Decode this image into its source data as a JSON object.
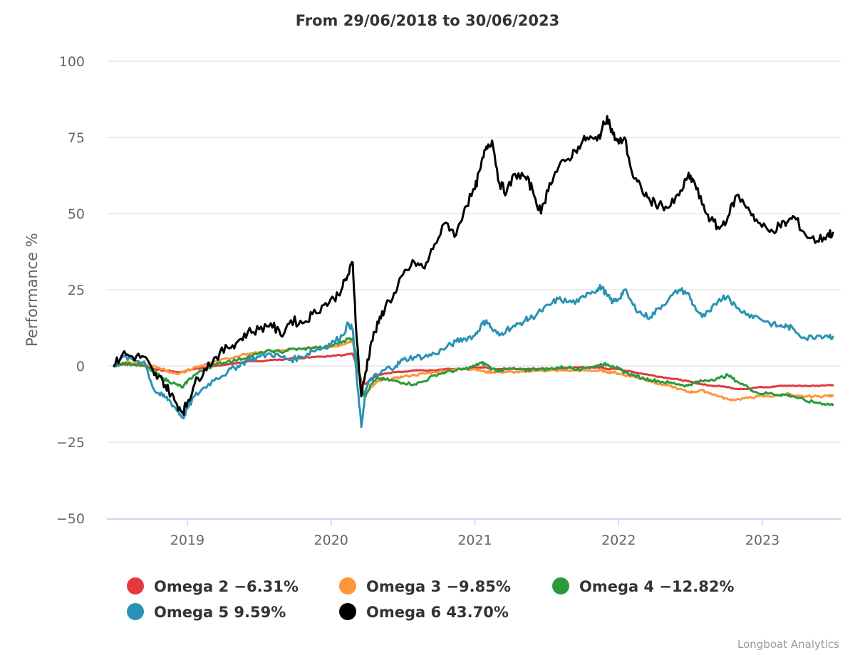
{
  "chart_data": {
    "type": "line",
    "title": "From 29/06/2018 to 30/06/2023",
    "xlabel": "",
    "ylabel": "Performance %",
    "x_range": [
      "2018-06-29",
      "2023-06-30"
    ],
    "ylim": [
      -50,
      100
    ],
    "yticks": [
      100,
      75,
      50,
      25,
      0,
      -25,
      -50
    ],
    "ytick_labels": [
      "100",
      "75",
      "50",
      "25",
      "0",
      "−25",
      "−50"
    ],
    "xticks": [
      "2019-01-01",
      "2020-01-01",
      "2021-01-01",
      "2022-01-01",
      "2023-01-01"
    ],
    "xtick_labels": [
      "2019",
      "2020",
      "2021",
      "2022",
      "2023"
    ],
    "grid": true,
    "legend_placement": "bottom",
    "credits": "Longboat Analytics",
    "x": [
      2018.49,
      2018.55,
      2018.62,
      2018.7,
      2018.77,
      2018.83,
      2018.87,
      2018.92,
      2018.97,
      2019.0,
      2019.05,
      2019.12,
      2019.2,
      2019.28,
      2019.35,
      2019.42,
      2019.5,
      2019.58,
      2019.65,
      2019.72,
      2019.8,
      2019.87,
      2019.95,
      2020.02,
      2020.08,
      2020.12,
      2020.15,
      2020.18,
      2020.21,
      2020.24,
      2020.28,
      2020.33,
      2020.38,
      2020.45,
      2020.5,
      2020.58,
      2020.65,
      2020.72,
      2020.8,
      2020.87,
      2020.93,
      2021.0,
      2021.04,
      2021.08,
      2021.12,
      2021.17,
      2021.22,
      2021.28,
      2021.35,
      2021.4,
      2021.46,
      2021.52,
      2021.58,
      2021.65,
      2021.72,
      2021.78,
      2021.85,
      2021.88,
      2021.92,
      2021.96,
      2022.0,
      2022.04,
      2022.1,
      2022.16,
      2022.22,
      2022.28,
      2022.35,
      2022.42,
      2022.48,
      2022.52,
      2022.58,
      2022.64,
      2022.7,
      2022.76,
      2022.82,
      2022.9,
      2022.97,
      2023.05,
      2023.12,
      2023.17,
      2023.22,
      2023.3,
      2023.38,
      2023.45,
      2023.49
    ],
    "series": [
      {
        "name": "Omega 2",
        "legend_label": "Omega 2 −6.31%",
        "final_return": "-6.31%",
        "color": "#e2383e",
        "values": [
          0,
          0.5,
          0.5,
          0,
          -1,
          -1.5,
          -1.5,
          -2,
          -2,
          -1.5,
          -1,
          -0.5,
          0,
          0.5,
          1,
          1.5,
          1.5,
          2,
          2,
          2.5,
          2.5,
          3,
          3,
          3.5,
          3.5,
          4,
          4,
          0,
          -5,
          -6,
          -4,
          -3,
          -2.5,
          -2,
          -2,
          -1.5,
          -1.5,
          -1.5,
          -1,
          -1,
          -1,
          -0.5,
          -0.5,
          -0.5,
          -1,
          -1,
          -1,
          -1,
          -1,
          -1,
          -1,
          -1,
          -1,
          -0.5,
          -0.5,
          -0.5,
          -0.5,
          -0.5,
          -1,
          -1,
          -1,
          -1.5,
          -2,
          -2.5,
          -3,
          -3.5,
          -4,
          -4.5,
          -5,
          -5.5,
          -6,
          -6.5,
          -6.5,
          -7,
          -7.5,
          -7.5,
          -7,
          -7,
          -6.5,
          -6.5,
          -6.5,
          -6.5,
          -6.5,
          -6.3,
          -6.31
        ]
      },
      {
        "name": "Omega 3",
        "legend_label": "Omega 3 −9.85%",
        "final_return": "-9.85%",
        "color": "#fd9639",
        "values": [
          0,
          1,
          1,
          0.5,
          0,
          -1,
          -2,
          -2.5,
          -2,
          -1.5,
          -0.5,
          0.5,
          1.5,
          2.5,
          3,
          4,
          4.5,
          5,
          5,
          5.5,
          5.5,
          6,
          6,
          6.5,
          7,
          8,
          8,
          2,
          -7,
          -9,
          -7,
          -5,
          -4.5,
          -4,
          -3.5,
          -3,
          -2.5,
          -2,
          -1.5,
          -1,
          -1,
          -1,
          -1.5,
          -2,
          -2,
          -2,
          -2,
          -2,
          -2,
          -1.5,
          -1.5,
          -1.5,
          -1.5,
          -1.5,
          -1.5,
          -1.5,
          -1.5,
          -1.5,
          -2,
          -2,
          -2.5,
          -3,
          -3.5,
          -4,
          -5,
          -6,
          -6.5,
          -7.5,
          -8.5,
          -8.5,
          -8,
          -9,
          -10,
          -11,
          -11,
          -10.5,
          -10,
          -10,
          -9.5,
          -9,
          -10,
          -10,
          -10,
          -9.8,
          -9.85
        ]
      },
      {
        "name": "Omega 4",
        "legend_label": "Omega 4 −12.82%",
        "final_return": "-12.82%",
        "color": "#2a9a3d",
        "values": [
          0,
          1,
          0.5,
          0,
          -2,
          -4,
          -5,
          -6,
          -7,
          -5,
          -3,
          -1,
          0.5,
          1.5,
          2,
          3,
          4,
          5,
          4.5,
          5.5,
          5.5,
          6,
          6,
          7,
          8,
          9,
          9,
          3,
          -8,
          -10,
          -6,
          -4,
          -4.5,
          -5,
          -5.5,
          -6,
          -5,
          -3,
          -2,
          -1.5,
          -1,
          0,
          1,
          0.5,
          -1,
          -1.5,
          -1,
          -1,
          -1.5,
          -1,
          -1,
          -1,
          -0.5,
          -0.5,
          -1,
          -0.5,
          0,
          0.5,
          0.5,
          0,
          -1,
          -2,
          -3,
          -4,
          -4.5,
          -5,
          -5.5,
          -6,
          -6.5,
          -5.5,
          -5,
          -4.5,
          -4,
          -3,
          -5,
          -7,
          -9,
          -9,
          -9.5,
          -9.5,
          -10,
          -11.5,
          -12,
          -12.5,
          -12.82
        ]
      },
      {
        "name": "Omega 5",
        "legend_label": "Omega 5 9.59%",
        "final_return": "9.59%",
        "color": "#2a92b4",
        "values": [
          0,
          3,
          2,
          1.5,
          -8,
          -10,
          -11,
          -14,
          -17,
          -14,
          -10,
          -7,
          -4,
          -2,
          0,
          2,
          3,
          4,
          3,
          2,
          3,
          5,
          6,
          8,
          10,
          14,
          12,
          -5,
          -20,
          -8,
          -4,
          -3,
          -1,
          0,
          2,
          3,
          3,
          4,
          6,
          8,
          9,
          10,
          13,
          15,
          12,
          10,
          12,
          13,
          15,
          16,
          18,
          20,
          22,
          21,
          21,
          24,
          25,
          26,
          23,
          21,
          22,
          25,
          20,
          17,
          16,
          19,
          22,
          25,
          24,
          20,
          16,
          18,
          22,
          23,
          19,
          17,
          16,
          14,
          13,
          13,
          12,
          9,
          10,
          10,
          9.59
        ]
      },
      {
        "name": "Omega 6",
        "legend_label": "Omega 6 43.70%",
        "final_return": "43.70%",
        "color": "#000000",
        "values": [
          0,
          4,
          3,
          3,
          -3,
          -5,
          -8,
          -12,
          -15,
          -12,
          -6,
          -1,
          3,
          6,
          8,
          11,
          12,
          14,
          10,
          15,
          14,
          17,
          20,
          22,
          26,
          30,
          34,
          8,
          -10,
          -2,
          8,
          14,
          20,
          24,
          30,
          34,
          32,
          40,
          47,
          43,
          52,
          58,
          65,
          72,
          74,
          60,
          57,
          63,
          62,
          58,
          50,
          60,
          65,
          68,
          72,
          75,
          74,
          77,
          82,
          76,
          73,
          75,
          62,
          58,
          54,
          53,
          52,
          56,
          62,
          61,
          53,
          48,
          45,
          49,
          56,
          52,
          47,
          44,
          46,
          47,
          49,
          43,
          41,
          43,
          43.7
        ]
      }
    ]
  }
}
